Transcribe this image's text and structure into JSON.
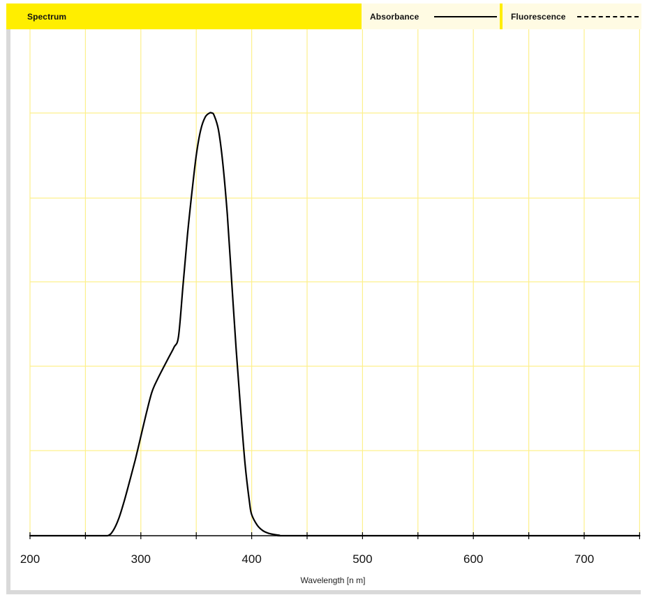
{
  "header": {
    "title": "Spectrum",
    "legend_absorbance": "Absorbance",
    "legend_fluorescence": "Fluorescence"
  },
  "colors": {
    "accent": "#ffee00",
    "legend_bg": "#fffbe3",
    "grid": "#fdf08c",
    "line": "#000000"
  },
  "chart_data": {
    "type": "line",
    "title": "Spectrum",
    "xlabel": "Wavelength [n m]",
    "ylabel": "",
    "xlim": [
      200,
      750
    ],
    "ylim": [
      0,
      1
    ],
    "x_ticks": [
      200,
      300,
      400,
      500,
      600,
      700
    ],
    "grid": true,
    "legend": {
      "placement": "top-right",
      "entries": [
        "Absorbance",
        "Fluorescence"
      ]
    },
    "series": [
      {
        "name": "Absorbance",
        "style": "solid",
        "x": [
          200,
          260,
          270,
          275,
          280,
          285,
          290,
          295,
          300,
          305,
          310,
          315,
          320,
          325,
          330,
          334,
          338,
          342,
          346,
          350,
          354,
          358,
          362,
          364,
          366,
          370,
          374,
          378,
          382,
          386,
          390,
          394,
          398,
          400,
          405,
          410,
          415,
          420,
          425,
          430,
          500,
          600,
          700,
          750
        ],
        "y": [
          0,
          0,
          0,
          0.012,
          0.04,
          0.082,
          0.13,
          0.18,
          0.235,
          0.29,
          0.34,
          0.37,
          0.396,
          0.421,
          0.446,
          0.472,
          0.59,
          0.71,
          0.81,
          0.9,
          0.96,
          0.99,
          1.0,
          1.0,
          0.995,
          0.96,
          0.88,
          0.76,
          0.6,
          0.44,
          0.3,
          0.17,
          0.08,
          0.05,
          0.025,
          0.012,
          0.006,
          0.003,
          0.001,
          0,
          0,
          0,
          0,
          0
        ]
      },
      {
        "name": "Fluorescence",
        "style": "dashed",
        "x": [],
        "y": []
      }
    ]
  }
}
